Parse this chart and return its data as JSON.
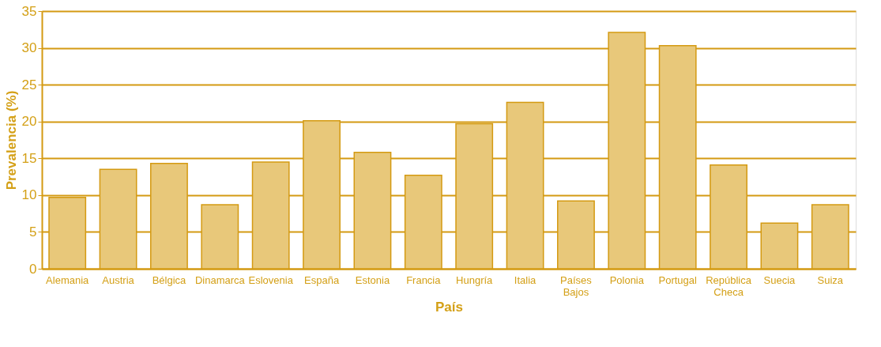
{
  "chart_data": {
    "type": "bar",
    "xlabel": "País",
    "ylabel": "Prevalencia (%)",
    "categories": [
      "Alemania",
      "Austria",
      "Bélgica",
      "Dinamarca",
      "Eslovenia",
      "España",
      "Estonia",
      "Francia",
      "Hungría",
      "Italia",
      "Países Bajos",
      "Polonia",
      "Portugal",
      "República Checa",
      "Suecia",
      "Suiza"
    ],
    "values": [
      9.7,
      13.5,
      14.3,
      8.7,
      14.5,
      20.1,
      15.8,
      12.7,
      19.7,
      22.6,
      9.2,
      32.1,
      30.3,
      14.1,
      6.2,
      8.7
    ],
    "color": "#e8c87a",
    "ylim": [
      0,
      35
    ],
    "yticks": [
      0,
      5,
      10,
      15,
      20,
      25,
      30,
      35
    ],
    "grid": "y"
  }
}
